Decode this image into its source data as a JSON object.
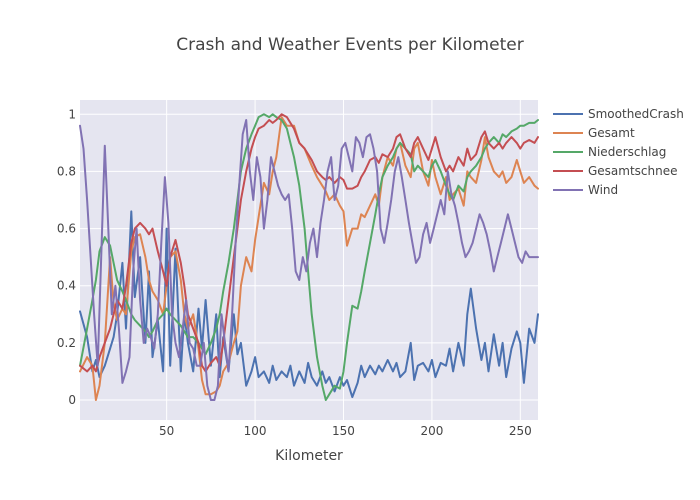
{
  "chart_data": {
    "type": "line",
    "title": "Crash and Weather Events per Kilometer",
    "xlabel": "Kilometer",
    "ylabel": "",
    "xlim": [
      1,
      260
    ],
    "ylim": [
      -0.07,
      1.05
    ],
    "xticks": [
      50,
      100,
      150,
      200,
      250
    ],
    "yticks": [
      0,
      0.2,
      0.4,
      0.6,
      0.8,
      1
    ],
    "ytick_labels": [
      "0",
      "0.2",
      "0.4",
      "0.6",
      "0.8",
      "1"
    ],
    "grid": true,
    "legend_position": "right",
    "series": [
      {
        "name": "SmoothedCrash",
        "color": "#4c72b0",
        "x": [
          1,
          5,
          8,
          10,
          12,
          15,
          18,
          20,
          22,
          25,
          27,
          30,
          32,
          35,
          38,
          40,
          42,
          45,
          48,
          50,
          52,
          55,
          58,
          60,
          62,
          65,
          68,
          70,
          72,
          75,
          78,
          80,
          82,
          85,
          88,
          90,
          92,
          95,
          98,
          100,
          102,
          105,
          108,
          110,
          112,
          115,
          118,
          120,
          122,
          125,
          128,
          130,
          132,
          135,
          138,
          140,
          142,
          145,
          148,
          150,
          152,
          155,
          158,
          160,
          162,
          165,
          168,
          170,
          172,
          175,
          178,
          180,
          182,
          185,
          188,
          190,
          192,
          195,
          198,
          200,
          202,
          205,
          208,
          210,
          212,
          215,
          218,
          220,
          222,
          225,
          228,
          230,
          232,
          235,
          238,
          240,
          242,
          245,
          248,
          250,
          252,
          255,
          258,
          260
        ],
        "y": [
          0.31,
          0.22,
          0.1,
          0.14,
          0.08,
          0.12,
          0.18,
          0.22,
          0.3,
          0.48,
          0.25,
          0.66,
          0.36,
          0.5,
          0.2,
          0.45,
          0.15,
          0.28,
          0.1,
          0.6,
          0.12,
          0.53,
          0.1,
          0.3,
          0.2,
          0.1,
          0.32,
          0.18,
          0.35,
          0.12,
          0.3,
          0.08,
          0.22,
          0.1,
          0.3,
          0.16,
          0.2,
          0.05,
          0.1,
          0.15,
          0.08,
          0.1,
          0.06,
          0.12,
          0.07,
          0.1,
          0.08,
          0.12,
          0.05,
          0.1,
          0.06,
          0.13,
          0.08,
          0.05,
          0.1,
          0.06,
          0.08,
          0.03,
          0.08,
          0.05,
          0.07,
          0.01,
          0.06,
          0.12,
          0.08,
          0.12,
          0.09,
          0.12,
          0.1,
          0.14,
          0.1,
          0.13,
          0.08,
          0.1,
          0.2,
          0.07,
          0.12,
          0.13,
          0.1,
          0.14,
          0.08,
          0.13,
          0.12,
          0.18,
          0.1,
          0.2,
          0.12,
          0.3,
          0.39,
          0.25,
          0.14,
          0.2,
          0.1,
          0.23,
          0.12,
          0.2,
          0.08,
          0.18,
          0.24,
          0.2,
          0.06,
          0.25,
          0.2,
          0.3
        ]
      },
      {
        "name": "Gesamt",
        "color": "#dd8452",
        "x": [
          1,
          5,
          8,
          10,
          12,
          15,
          18,
          20,
          22,
          25,
          27,
          30,
          32,
          35,
          38,
          40,
          42,
          45,
          48,
          50,
          52,
          55,
          58,
          60,
          62,
          65,
          68,
          70,
          72,
          75,
          78,
          80,
          82,
          85,
          88,
          90,
          92,
          95,
          98,
          100,
          102,
          105,
          108,
          110,
          112,
          115,
          118,
          120,
          122,
          125,
          128,
          130,
          132,
          135,
          138,
          140,
          142,
          145,
          148,
          150,
          152,
          155,
          158,
          160,
          162,
          165,
          168,
          170,
          172,
          175,
          178,
          180,
          182,
          185,
          188,
          190,
          192,
          195,
          198,
          200,
          202,
          205,
          208,
          210,
          212,
          215,
          218,
          220,
          222,
          225,
          228,
          230,
          232,
          235,
          238,
          240,
          242,
          245,
          248,
          250,
          252,
          255,
          258,
          260
        ],
        "y": [
          0.1,
          0.15,
          0.12,
          0.0,
          0.05,
          0.2,
          0.5,
          0.34,
          0.28,
          0.32,
          0.3,
          0.52,
          0.57,
          0.58,
          0.5,
          0.42,
          0.38,
          0.35,
          0.3,
          0.4,
          0.5,
          0.52,
          0.42,
          0.3,
          0.25,
          0.3,
          0.18,
          0.07,
          0.02,
          0.02,
          0.03,
          0.05,
          0.1,
          0.13,
          0.2,
          0.24,
          0.4,
          0.5,
          0.45,
          0.56,
          0.64,
          0.76,
          0.72,
          0.8,
          0.85,
          0.99,
          0.96,
          0.96,
          0.96,
          0.9,
          0.88,
          0.85,
          0.82,
          0.78,
          0.75,
          0.73,
          0.7,
          0.72,
          0.68,
          0.66,
          0.54,
          0.6,
          0.6,
          0.65,
          0.64,
          0.68,
          0.72,
          0.68,
          0.78,
          0.85,
          0.82,
          0.88,
          0.9,
          0.82,
          0.78,
          0.88,
          0.9,
          0.8,
          0.75,
          0.84,
          0.78,
          0.72,
          0.78,
          0.7,
          0.72,
          0.74,
          0.68,
          0.8,
          0.78,
          0.76,
          0.84,
          0.92,
          0.85,
          0.8,
          0.78,
          0.8,
          0.76,
          0.78,
          0.84,
          0.8,
          0.76,
          0.78,
          0.75,
          0.74
        ]
      },
      {
        "name": "Niederschlag",
        "color": "#55a868",
        "x": [
          1,
          5,
          8,
          10,
          12,
          15,
          18,
          20,
          22,
          25,
          27,
          30,
          32,
          35,
          38,
          40,
          42,
          45,
          48,
          50,
          52,
          55,
          58,
          60,
          62,
          65,
          68,
          70,
          72,
          75,
          78,
          80,
          82,
          85,
          88,
          90,
          92,
          95,
          98,
          100,
          102,
          105,
          108,
          110,
          112,
          115,
          118,
          120,
          122,
          125,
          128,
          130,
          132,
          135,
          138,
          140,
          142,
          145,
          148,
          150,
          152,
          155,
          158,
          160,
          162,
          165,
          168,
          170,
          172,
          175,
          178,
          180,
          182,
          185,
          188,
          190,
          192,
          195,
          198,
          200,
          202,
          205,
          208,
          210,
          212,
          215,
          218,
          220,
          222,
          225,
          228,
          230,
          232,
          235,
          238,
          240,
          242,
          245,
          248,
          250,
          252,
          255,
          258,
          260
        ],
        "y": [
          0.12,
          0.25,
          0.35,
          0.42,
          0.52,
          0.57,
          0.54,
          0.48,
          0.42,
          0.38,
          0.35,
          0.3,
          0.28,
          0.26,
          0.24,
          0.22,
          0.24,
          0.28,
          0.3,
          0.32,
          0.3,
          0.28,
          0.26,
          0.24,
          0.22,
          0.22,
          0.2,
          0.18,
          0.16,
          0.2,
          0.25,
          0.3,
          0.38,
          0.48,
          0.6,
          0.7,
          0.8,
          0.88,
          0.93,
          0.96,
          0.99,
          1.0,
          0.99,
          1.0,
          0.99,
          0.98,
          0.95,
          0.9,
          0.85,
          0.75,
          0.6,
          0.45,
          0.3,
          0.15,
          0.05,
          0.0,
          0.02,
          0.05,
          0.04,
          0.1,
          0.2,
          0.33,
          0.32,
          0.38,
          0.45,
          0.55,
          0.65,
          0.72,
          0.78,
          0.82,
          0.85,
          0.88,
          0.9,
          0.88,
          0.86,
          0.8,
          0.82,
          0.8,
          0.78,
          0.82,
          0.84,
          0.8,
          0.75,
          0.72,
          0.7,
          0.75,
          0.73,
          0.78,
          0.8,
          0.82,
          0.85,
          0.88,
          0.9,
          0.92,
          0.9,
          0.93,
          0.92,
          0.94,
          0.95,
          0.96,
          0.96,
          0.97,
          0.97,
          0.98
        ]
      },
      {
        "name": "Gesamtschnee",
        "color": "#c44e52",
        "x": [
          1,
          5,
          8,
          10,
          12,
          15,
          18,
          20,
          22,
          25,
          27,
          30,
          32,
          35,
          38,
          40,
          42,
          45,
          48,
          50,
          52,
          55,
          58,
          60,
          62,
          65,
          68,
          70,
          72,
          75,
          78,
          80,
          82,
          85,
          88,
          90,
          92,
          95,
          98,
          100,
          102,
          105,
          108,
          110,
          112,
          115,
          118,
          120,
          122,
          125,
          128,
          130,
          132,
          135,
          138,
          140,
          142,
          145,
          148,
          150,
          152,
          155,
          158,
          160,
          162,
          165,
          168,
          170,
          172,
          175,
          178,
          180,
          182,
          185,
          188,
          190,
          192,
          195,
          198,
          200,
          202,
          205,
          208,
          210,
          212,
          215,
          218,
          220,
          222,
          225,
          228,
          230,
          232,
          235,
          238,
          240,
          242,
          245,
          248,
          250,
          252,
          255,
          258,
          260
        ],
        "y": [
          0.12,
          0.1,
          0.12,
          0.1,
          0.15,
          0.2,
          0.25,
          0.3,
          0.35,
          0.32,
          0.4,
          0.55,
          0.6,
          0.62,
          0.6,
          0.58,
          0.6,
          0.52,
          0.45,
          0.4,
          0.5,
          0.56,
          0.48,
          0.4,
          0.3,
          0.25,
          0.2,
          0.12,
          0.1,
          0.13,
          0.15,
          0.12,
          0.2,
          0.35,
          0.5,
          0.6,
          0.7,
          0.8,
          0.88,
          0.92,
          0.95,
          0.96,
          0.98,
          0.97,
          0.98,
          1.0,
          0.99,
          0.97,
          0.95,
          0.9,
          0.88,
          0.86,
          0.84,
          0.8,
          0.78,
          0.77,
          0.78,
          0.76,
          0.78,
          0.77,
          0.74,
          0.74,
          0.75,
          0.78,
          0.8,
          0.84,
          0.85,
          0.83,
          0.86,
          0.85,
          0.88,
          0.92,
          0.93,
          0.88,
          0.85,
          0.9,
          0.92,
          0.88,
          0.84,
          0.88,
          0.92,
          0.85,
          0.8,
          0.82,
          0.8,
          0.85,
          0.82,
          0.88,
          0.84,
          0.86,
          0.92,
          0.94,
          0.9,
          0.88,
          0.9,
          0.88,
          0.9,
          0.92,
          0.9,
          0.88,
          0.9,
          0.91,
          0.9,
          0.92
        ]
      },
      {
        "name": "Wind",
        "color": "#8172b3",
        "x": [
          1,
          3,
          5,
          7,
          9,
          11,
          13,
          15,
          17,
          19,
          21,
          23,
          25,
          27,
          29,
          31,
          33,
          35,
          37,
          39,
          41,
          43,
          45,
          47,
          49,
          51,
          53,
          55,
          57,
          59,
          61,
          63,
          65,
          67,
          69,
          71,
          73,
          75,
          77,
          79,
          81,
          83,
          85,
          87,
          89,
          91,
          93,
          95,
          97,
          99,
          101,
          103,
          105,
          107,
          109,
          111,
          113,
          115,
          117,
          119,
          121,
          123,
          125,
          127,
          129,
          131,
          133,
          135,
          137,
          139,
          141,
          143,
          145,
          147,
          149,
          151,
          153,
          155,
          157,
          159,
          161,
          163,
          165,
          167,
          169,
          171,
          173,
          175,
          177,
          179,
          181,
          183,
          185,
          187,
          189,
          191,
          193,
          195,
          197,
          199,
          201,
          203,
          205,
          207,
          209,
          211,
          213,
          215,
          217,
          219,
          221,
          223,
          225,
          227,
          229,
          231,
          233,
          235,
          237,
          239,
          241,
          243,
          245,
          247,
          249,
          251,
          253,
          255,
          257,
          259,
          260
        ],
        "y": [
          0.96,
          0.88,
          0.7,
          0.5,
          0.3,
          0.12,
          0.5,
          0.89,
          0.6,
          0.3,
          0.4,
          0.25,
          0.06,
          0.1,
          0.15,
          0.45,
          0.6,
          0.35,
          0.2,
          0.25,
          0.22,
          0.18,
          0.3,
          0.55,
          0.78,
          0.62,
          0.3,
          0.2,
          0.15,
          0.25,
          0.35,
          0.2,
          0.18,
          0.12,
          0.12,
          0.2,
          0.05,
          0.0,
          0.0,
          0.05,
          0.3,
          0.2,
          0.1,
          0.3,
          0.55,
          0.75,
          0.93,
          0.98,
          0.8,
          0.7,
          0.85,
          0.78,
          0.6,
          0.7,
          0.85,
          0.8,
          0.75,
          0.72,
          0.7,
          0.72,
          0.6,
          0.45,
          0.42,
          0.5,
          0.45,
          0.55,
          0.6,
          0.5,
          0.62,
          0.7,
          0.8,
          0.85,
          0.7,
          0.75,
          0.88,
          0.9,
          0.85,
          0.8,
          0.92,
          0.9,
          0.85,
          0.92,
          0.93,
          0.88,
          0.8,
          0.6,
          0.55,
          0.62,
          0.7,
          0.8,
          0.85,
          0.78,
          0.7,
          0.62,
          0.55,
          0.48,
          0.5,
          0.58,
          0.62,
          0.55,
          0.6,
          0.65,
          0.7,
          0.65,
          0.8,
          0.72,
          0.68,
          0.62,
          0.55,
          0.5,
          0.52,
          0.55,
          0.6,
          0.65,
          0.62,
          0.58,
          0.52,
          0.45,
          0.5,
          0.55,
          0.6,
          0.65,
          0.6,
          0.55,
          0.5,
          0.48,
          0.52,
          0.5,
          0.5,
          0.5,
          0.5
        ]
      }
    ]
  }
}
